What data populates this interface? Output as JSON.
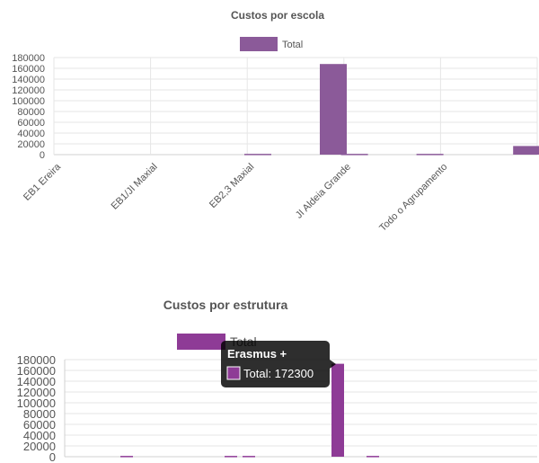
{
  "chart_data": [
    {
      "type": "bar",
      "title": "Custos por escola",
      "legend": [
        "Total"
      ],
      "categories": [
        "EB1 Ereira",
        "EB1/JI Maxial",
        "EB2,3 Maxial",
        "JI Aldeia Grande",
        "Todo o Agrupamento"
      ],
      "series": [
        {
          "name": "Total",
          "color": "#8b5a99",
          "bars": [
            {
              "category": "EB2,3 Maxial",
              "offset": -0.5,
              "value": 1500
            },
            {
              "category": "EB2,3 Maxial",
              "offset": 0.5,
              "value": 168000
            },
            {
              "category": "JI Aldeia Grande",
              "offset": -0.5,
              "value": 1500
            },
            {
              "category": "JI Aldeia Grande",
              "offset": 0.5,
              "value": 1500
            },
            {
              "category": "Todo o Agrupamento",
              "offset": 0.5,
              "value": 16000
            }
          ]
        }
      ],
      "y_ticks": [
        "180000",
        "160000",
        "140000",
        "120000",
        "100000",
        "80000",
        "60000",
        "40000",
        "20000",
        "0"
      ],
      "ylim": [
        0,
        180000
      ],
      "grid": true,
      "legend_position": "top"
    },
    {
      "type": "bar",
      "title": "Custos por estrutura",
      "legend": [
        "Total"
      ],
      "series": [
        {
          "name": "Total",
          "color": "#8e3b96",
          "bars": [
            {
              "value": 1500
            },
            {
              "value": 1500
            },
            {
              "value": 1500
            },
            {
              "value": 172300
            },
            {
              "value": 1500
            }
          ]
        }
      ],
      "y_ticks": [
        "180000",
        "160000",
        "140000",
        "120000",
        "100000",
        "80000",
        "60000",
        "40000",
        "20000",
        "0"
      ],
      "ylim": [
        0,
        180000
      ],
      "grid": true,
      "legend_position": "top",
      "tooltip": {
        "title": "Erasmus +",
        "label": "Total: 172300",
        "swatch_color": "#8e3b96"
      }
    }
  ]
}
